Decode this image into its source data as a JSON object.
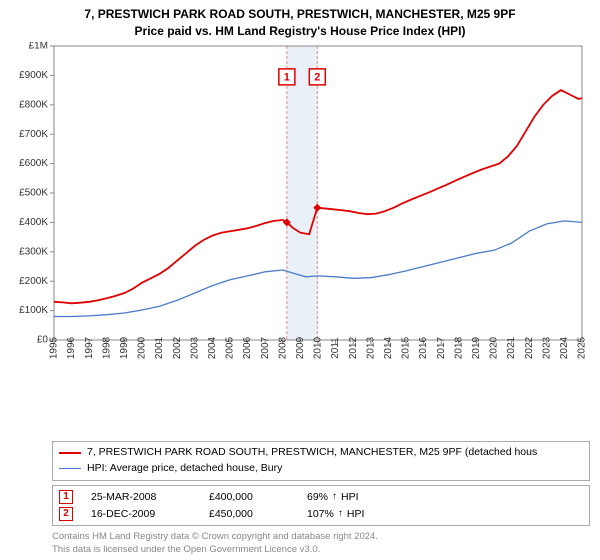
{
  "title": {
    "line1": "7, PRESTWICH PARK ROAD SOUTH, PRESTWICH, MANCHESTER, M25 9PF",
    "line2": "Price paid vs. HM Land Registry's House Price Index (HPI)",
    "fontsize": 12,
    "color": "#000000"
  },
  "chart": {
    "type": "line",
    "background_color": "#ffffff",
    "plot_border_color": "#888888",
    "xlim": [
      1995,
      2025
    ],
    "ylim": [
      0,
      1000000
    ],
    "y_ticks": [
      0,
      100000,
      200000,
      300000,
      400000,
      500000,
      600000,
      700000,
      800000,
      900000,
      1000000
    ],
    "y_tick_labels": [
      "£0",
      "£100K",
      "£200K",
      "£300K",
      "£400K",
      "£500K",
      "£600K",
      "£700K",
      "£800K",
      "£900K",
      "£1M"
    ],
    "x_ticks": [
      1995,
      1996,
      1997,
      1998,
      1999,
      2000,
      2001,
      2002,
      2003,
      2004,
      2005,
      2006,
      2007,
      2008,
      2009,
      2010,
      2011,
      2012,
      2013,
      2014,
      2015,
      2016,
      2017,
      2018,
      2019,
      2020,
      2021,
      2022,
      2023,
      2024,
      2025
    ],
    "tick_fontsize": 10,
    "grid": false,
    "highlight_band": {
      "x_from": 2008.23,
      "x_to": 2009.96,
      "fill": "#eaf0f8",
      "edge_color": "#dd8888",
      "dash": "3 2"
    },
    "series": [
      {
        "name": "property",
        "label": "7, PRESTWICH PARK ROAD SOUTH, PRESTWICH, MANCHESTER, M25 9PF (detached hous",
        "color": "#e00000",
        "width": 1.8,
        "points": [
          [
            1995,
            130000
          ],
          [
            1995.5,
            128000
          ],
          [
            1996,
            125000
          ],
          [
            1996.5,
            127000
          ],
          [
            1997,
            130000
          ],
          [
            1997.5,
            135000
          ],
          [
            1998,
            142000
          ],
          [
            1998.5,
            150000
          ],
          [
            1999,
            160000
          ],
          [
            1999.5,
            175000
          ],
          [
            2000,
            195000
          ],
          [
            2000.5,
            210000
          ],
          [
            2001,
            225000
          ],
          [
            2001.5,
            245000
          ],
          [
            2002,
            270000
          ],
          [
            2002.5,
            295000
          ],
          [
            2003,
            320000
          ],
          [
            2003.5,
            340000
          ],
          [
            2004,
            355000
          ],
          [
            2004.5,
            365000
          ],
          [
            2005,
            370000
          ],
          [
            2005.5,
            375000
          ],
          [
            2006,
            380000
          ],
          [
            2006.5,
            388000
          ],
          [
            2007,
            398000
          ],
          [
            2007.5,
            405000
          ],
          [
            2008,
            408000
          ],
          [
            2008.23,
            400000
          ],
          [
            2008.6,
            380000
          ],
          [
            2009,
            365000
          ],
          [
            2009.5,
            360000
          ],
          [
            2009.96,
            450000
          ],
          [
            2010.3,
            448000
          ],
          [
            2010.8,
            445000
          ],
          [
            2011.3,
            442000
          ],
          [
            2011.8,
            438000
          ],
          [
            2012.3,
            432000
          ],
          [
            2012.8,
            428000
          ],
          [
            2013.3,
            430000
          ],
          [
            2013.8,
            438000
          ],
          [
            2014.3,
            450000
          ],
          [
            2014.8,
            465000
          ],
          [
            2015.3,
            478000
          ],
          [
            2015.8,
            490000
          ],
          [
            2016.3,
            502000
          ],
          [
            2016.8,
            515000
          ],
          [
            2017.3,
            528000
          ],
          [
            2017.8,
            542000
          ],
          [
            2018.3,
            555000
          ],
          [
            2018.8,
            568000
          ],
          [
            2019.3,
            580000
          ],
          [
            2019.8,
            590000
          ],
          [
            2020.3,
            600000
          ],
          [
            2020.8,
            625000
          ],
          [
            2021.3,
            660000
          ],
          [
            2021.8,
            710000
          ],
          [
            2022.3,
            760000
          ],
          [
            2022.8,
            800000
          ],
          [
            2023.3,
            830000
          ],
          [
            2023.8,
            850000
          ],
          [
            2024.3,
            835000
          ],
          [
            2024.8,
            820000
          ],
          [
            2025,
            822000
          ]
        ]
      },
      {
        "name": "hpi",
        "label": "HPI: Average price, detached house, Bury",
        "color": "#4a7bc8",
        "width": 1.3,
        "points": [
          [
            1995,
            80000
          ],
          [
            1996,
            80000
          ],
          [
            1997,
            82000
          ],
          [
            1998,
            86000
          ],
          [
            1999,
            92000
          ],
          [
            2000,
            102000
          ],
          [
            2001,
            115000
          ],
          [
            2002,
            135000
          ],
          [
            2003,
            160000
          ],
          [
            2004,
            185000
          ],
          [
            2005,
            205000
          ],
          [
            2006,
            218000
          ],
          [
            2007,
            232000
          ],
          [
            2008,
            238000
          ],
          [
            2008.7,
            225000
          ],
          [
            2009.3,
            215000
          ],
          [
            2010,
            218000
          ],
          [
            2011,
            215000
          ],
          [
            2012,
            210000
          ],
          [
            2013,
            212000
          ],
          [
            2014,
            222000
          ],
          [
            2015,
            235000
          ],
          [
            2016,
            250000
          ],
          [
            2017,
            265000
          ],
          [
            2018,
            280000
          ],
          [
            2019,
            295000
          ],
          [
            2020,
            305000
          ],
          [
            2021,
            330000
          ],
          [
            2022,
            370000
          ],
          [
            2023,
            395000
          ],
          [
            2024,
            405000
          ],
          [
            2025,
            400000
          ]
        ]
      }
    ],
    "markers": [
      {
        "n": 1,
        "x": 2008.23,
        "y": 400000,
        "color": "#e00000",
        "size": 4,
        "callout_y": 895000
      },
      {
        "n": 2,
        "x": 2009.96,
        "y": 450000,
        "color": "#e00000",
        "size": 4,
        "callout_y": 895000
      }
    ]
  },
  "legend": {
    "border_color": "#aaaaaa",
    "fontsize": 10.5,
    "items": [
      {
        "color": "#e00000",
        "width": 2,
        "text": "7, PRESTWICH PARK ROAD SOUTH, PRESTWICH, MANCHESTER, M25 9PF (detached hous"
      },
      {
        "color": "#4a7bc8",
        "width": 1.5,
        "text": "HPI: Average price, detached house, Bury"
      }
    ]
  },
  "sales": {
    "border_color": "#aaaaaa",
    "fontsize": 10.5,
    "rows": [
      {
        "n": "1",
        "date": "25-MAR-2008",
        "price": "£400,000",
        "hpi_pct": "69%",
        "hpi_dir": "↑",
        "hpi_label": "HPI"
      },
      {
        "n": "2",
        "date": "16-DEC-2009",
        "price": "£450,000",
        "hpi_pct": "107%",
        "hpi_dir": "↑",
        "hpi_label": "HPI"
      }
    ]
  },
  "footer": {
    "line1": "Contains HM Land Registry data © Crown copyright and database right 2024.",
    "line2": "This data is licensed under the Open Government Licence v3.0.",
    "color": "#888888",
    "fontsize": 9.5
  }
}
